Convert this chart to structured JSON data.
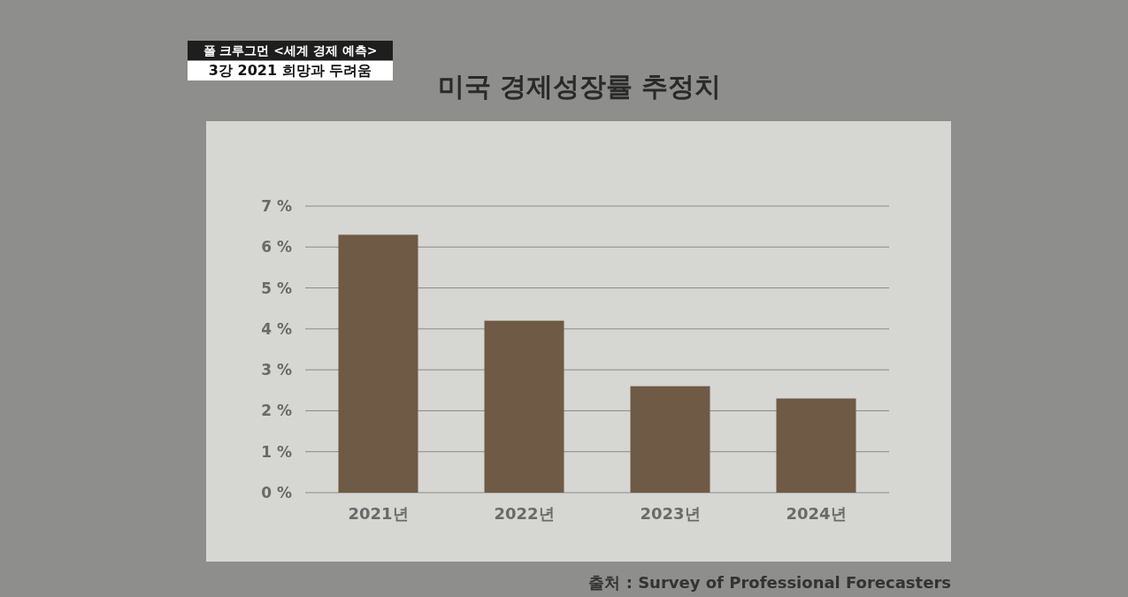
{
  "chart_data": {
    "type": "bar",
    "title": "미국 경제성장률 추정치",
    "categories": [
      "2021년",
      "2022년",
      "2023년",
      "2024년"
    ],
    "values": [
      6.3,
      4.2,
      2.6,
      2.3
    ],
    "color": "#6e5a45",
    "ylim": [
      0,
      7
    ],
    "yticks": [
      {
        "value": 0,
        "label": "0 %"
      },
      {
        "value": 1,
        "label": "1 %"
      },
      {
        "value": 2,
        "label": "2 %"
      },
      {
        "value": 3,
        "label": "3 %"
      },
      {
        "value": 4,
        "label": "4 %"
      },
      {
        "value": 5,
        "label": "5 %"
      },
      {
        "value": 6,
        "label": "6 %"
      },
      {
        "value": 7,
        "label": "7 %"
      }
    ],
    "grid": "y",
    "annotations": [
      "폴 크루그먼 <세계 경제 예측>",
      "3강 2021 희망과 두려움",
      "출처 : Survey of Professional Forecasters"
    ]
  }
}
